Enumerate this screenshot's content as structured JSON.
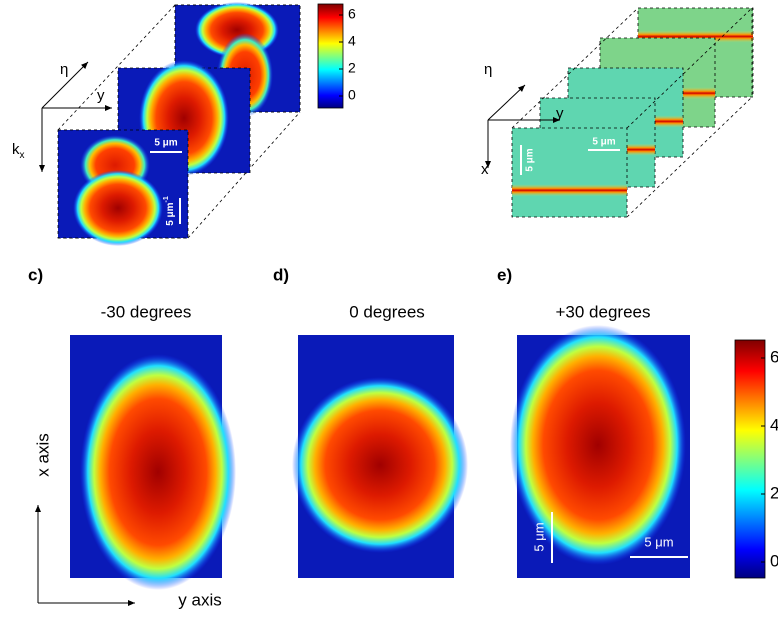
{
  "top_left": {
    "axes": {
      "eta": "η",
      "y": "y",
      "kx": {
        "base": "k",
        "sub": "x"
      }
    },
    "scale_bars": {
      "space": "5 μm",
      "momentum": {
        "base": "5 μm",
        "sup": "-1"
      }
    },
    "colorbar_ticks": [
      6,
      4,
      2,
      0
    ]
  },
  "top_right": {
    "axes": {
      "eta": "η",
      "y": "y",
      "x": "x"
    },
    "scale_bars": {
      "horizontal": "5 μm",
      "vertical": "5 μm"
    }
  },
  "panels": [
    {
      "letter": "c)",
      "title": "-30 degrees"
    },
    {
      "letter": "d)",
      "title": "0 degrees"
    },
    {
      "letter": "e)",
      "title": "+30 degrees"
    }
  ],
  "bottom": {
    "x_axis": "x axis",
    "y_axis": "y axis",
    "scale_bars": {
      "vertical": "5 μm",
      "horizontal": "5 μm"
    },
    "colorbar_ticks": [
      6,
      4,
      2,
      0
    ]
  }
}
